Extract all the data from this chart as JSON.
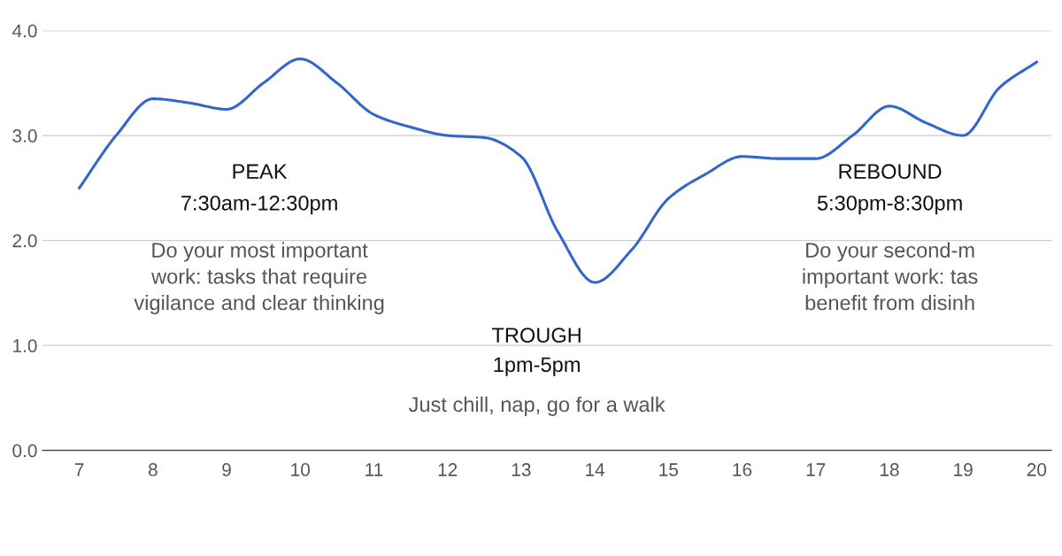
{
  "chart_data": {
    "type": "line",
    "x": [
      7,
      7.5,
      8,
      8.5,
      9,
      9.5,
      10,
      10.5,
      11,
      11.5,
      12,
      12.5,
      13,
      13.5,
      14,
      14.5,
      15,
      15.5,
      16,
      16.5,
      17,
      17.5,
      18,
      18.5,
      19,
      19.5,
      20
    ],
    "series": [
      {
        "color": "#3366cc",
        "values": [
          2.5,
          3.0,
          3.35,
          3.31,
          3.25,
          3.5,
          3.73,
          3.5,
          3.2,
          3.08,
          3.0,
          2.98,
          2.8,
          2.08,
          1.6,
          1.91,
          2.4,
          2.63,
          2.8,
          2.78,
          2.78,
          3.0,
          3.28,
          3.12,
          3.0,
          3.46,
          3.7
        ]
      }
    ],
    "xlim": [
      6.5,
      20.2
    ],
    "xticks": [
      7,
      8,
      9,
      10,
      11,
      12,
      13,
      14,
      15,
      16,
      17,
      18,
      19,
      20
    ],
    "ylim": [
      0,
      4
    ],
    "yticks": [
      {
        "value": 0,
        "label": "0.0"
      },
      {
        "value": 1,
        "label": "1.0"
      },
      {
        "value": 2,
        "label": "2.0"
      },
      {
        "value": 3,
        "label": "3.0"
      },
      {
        "value": 4,
        "label": "4.0"
      }
    ],
    "grid": "y",
    "annotations": [
      "PEAK",
      "7:30am-12:30pm",
      "Do your most important\nwork: tasks that require\nvigilance and clear thinking",
      "TROUGH",
      "1pm-5pm",
      "Just chill, nap, go for a walk",
      "REBOUND",
      "5:30pm-8:30pm",
      "Do your second-m\nimportant work: tas\nbenefit from disinh"
    ]
  }
}
